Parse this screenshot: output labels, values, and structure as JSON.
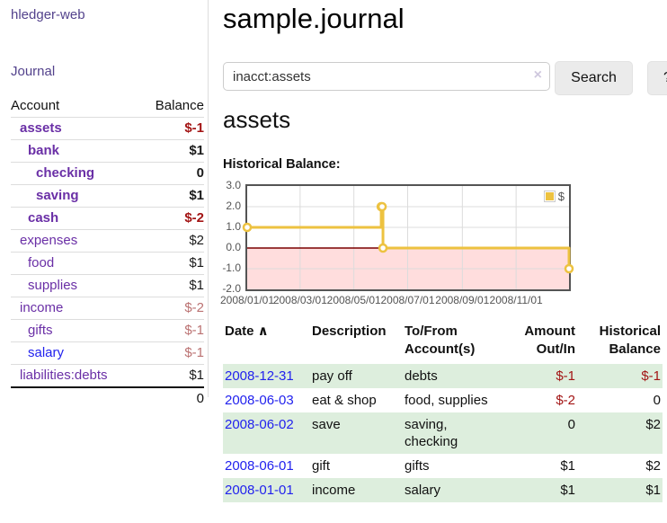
{
  "app": {
    "brand": "hledger-web",
    "nav_journal": "Journal"
  },
  "colors": {
    "nav_purple": "#53428c",
    "account_link_purple": "#6a2fa6",
    "unvisited_link_blue": "#2222ee",
    "negative_strong": "#a31515",
    "negative_muted": "#bb7272",
    "row_stripe_green": "#ddeedd",
    "series_gold": "#edc240",
    "chart_negative_fill": "#ffdddd",
    "chart_zero_line": "#7a0000",
    "chart_border": "#545454",
    "grid_line": "#dcdcdc"
  },
  "sidebar": {
    "header": {
      "account": "Account",
      "balance": "Balance"
    },
    "accounts": [
      {
        "name": "assets",
        "balance": "$-1",
        "indent": 1,
        "bold": true,
        "value_class": "neg-strong"
      },
      {
        "name": "bank",
        "balance": "$1",
        "indent": 2,
        "bold": true,
        "value_class": ""
      },
      {
        "name": "checking",
        "balance": "0",
        "indent": 3,
        "bold": true,
        "value_class": ""
      },
      {
        "name": "saving",
        "balance": "$1",
        "indent": 3,
        "bold": true,
        "value_class": ""
      },
      {
        "name": "cash",
        "balance": "$-2",
        "indent": 2,
        "bold": true,
        "value_class": "neg-strong"
      },
      {
        "name": "expenses",
        "balance": "$2",
        "indent": 1,
        "bold": false,
        "value_class": ""
      },
      {
        "name": "food",
        "balance": "$1",
        "indent": 2,
        "bold": false,
        "value_class": ""
      },
      {
        "name": "supplies",
        "balance": "$1",
        "indent": 2,
        "bold": false,
        "value_class": ""
      },
      {
        "name": "income",
        "balance": "$-2",
        "indent": 1,
        "bold": false,
        "value_class": "neg-muted"
      },
      {
        "name": "gifts",
        "balance": "$-1",
        "indent": 2,
        "bold": false,
        "value_class": "neg-muted"
      },
      {
        "name": "salary",
        "balance": "$-1",
        "indent": 2,
        "bold": false,
        "value_class": "neg-muted",
        "link": "blue"
      },
      {
        "name": "liabilities:debts",
        "balance": "$1",
        "indent": 1,
        "bold": false,
        "value_class": ""
      }
    ],
    "total": "0"
  },
  "main": {
    "title": "sample.journal"
  },
  "search": {
    "value": "inacct:assets",
    "clear_icon": "×",
    "button_label": "Search",
    "help_label": "?"
  },
  "account_page": {
    "title": "assets",
    "chart_label": "Historical Balance:"
  },
  "chart_data": {
    "type": "line",
    "style": "steps",
    "title": "Historical Balance:",
    "series": [
      {
        "name": "$",
        "color": "#edc240",
        "points": [
          [
            "2008-01-01",
            1
          ],
          [
            "2008-06-01",
            2
          ],
          [
            "2008-06-02",
            2
          ],
          [
            "2008-06-03",
            0
          ],
          [
            "2008-12-31",
            -1
          ]
        ]
      }
    ],
    "x_range": [
      "2008-01-01",
      "2008-12-31"
    ],
    "ylim": [
      -2,
      3
    ],
    "y_ticks": [
      3.0,
      2.0,
      1.0,
      0.0,
      -1.0,
      -2.0
    ],
    "x_ticks": [
      "2008/01/01",
      "2008/03/01",
      "2008/05/01",
      "2008/07/01",
      "2008/09/01",
      "2008/11/01"
    ],
    "legend": {
      "label": "$",
      "position": "top-right"
    },
    "grid": true,
    "negative_region_fill": "#ffdddd",
    "zero_line_color": "#7a0000"
  },
  "register": {
    "sort_icon": "∧",
    "columns": [
      {
        "label": "Date",
        "align": "left",
        "sort": "asc"
      },
      {
        "label": "Description",
        "align": "left"
      },
      {
        "label": "To/From\nAccount(s)",
        "align": "left"
      },
      {
        "label": "Amount\nOut/In",
        "align": "right"
      },
      {
        "label": "Historical\nBalance",
        "align": "right"
      }
    ],
    "rows": [
      {
        "date": "2008-12-31",
        "description": "pay off",
        "accounts": "debts",
        "amount": "$-1",
        "amount_neg": true,
        "balance": "$-1",
        "balance_neg": true
      },
      {
        "date": "2008-06-03",
        "description": "eat & shop",
        "accounts": "food, supplies",
        "amount": "$-2",
        "amount_neg": true,
        "balance": "0",
        "balance_neg": false
      },
      {
        "date": "2008-06-02",
        "description": "save",
        "accounts": "saving,\nchecking",
        "amount": "0",
        "amount_neg": false,
        "balance": "$2",
        "balance_neg": false
      },
      {
        "date": "2008-06-01",
        "description": "gift",
        "accounts": "gifts",
        "amount": "$1",
        "amount_neg": false,
        "balance": "$2",
        "balance_neg": false
      },
      {
        "date": "2008-01-01",
        "description": "income",
        "accounts": "salary",
        "amount": "$1",
        "amount_neg": false,
        "balance": "$1",
        "balance_neg": false
      }
    ]
  }
}
